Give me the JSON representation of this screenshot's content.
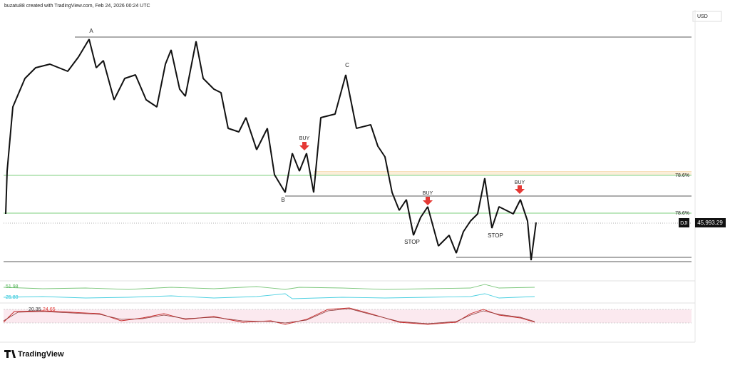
{
  "header": {
    "caption": "buzatu88 created with TradingView.com, Feb 24, 2026 00:24 UTC",
    "currency": "USD"
  },
  "chart": {
    "points": [
      "A",
      "B",
      "C"
    ],
    "signals": [
      "BUY",
      "BUY",
      "BUY"
    ],
    "stops": [
      "STOP",
      "STOP"
    ],
    "fib_labels": [
      "78.6%",
      "78.6%"
    ],
    "symbol": "DJI",
    "price": "45,993.29"
  },
  "indicators": {
    "line_a": "51.98",
    "line_b": "25.80",
    "rsi_a": "20.35",
    "rsi_b": "24.65"
  },
  "footer": {
    "brand": "TradingView"
  }
}
